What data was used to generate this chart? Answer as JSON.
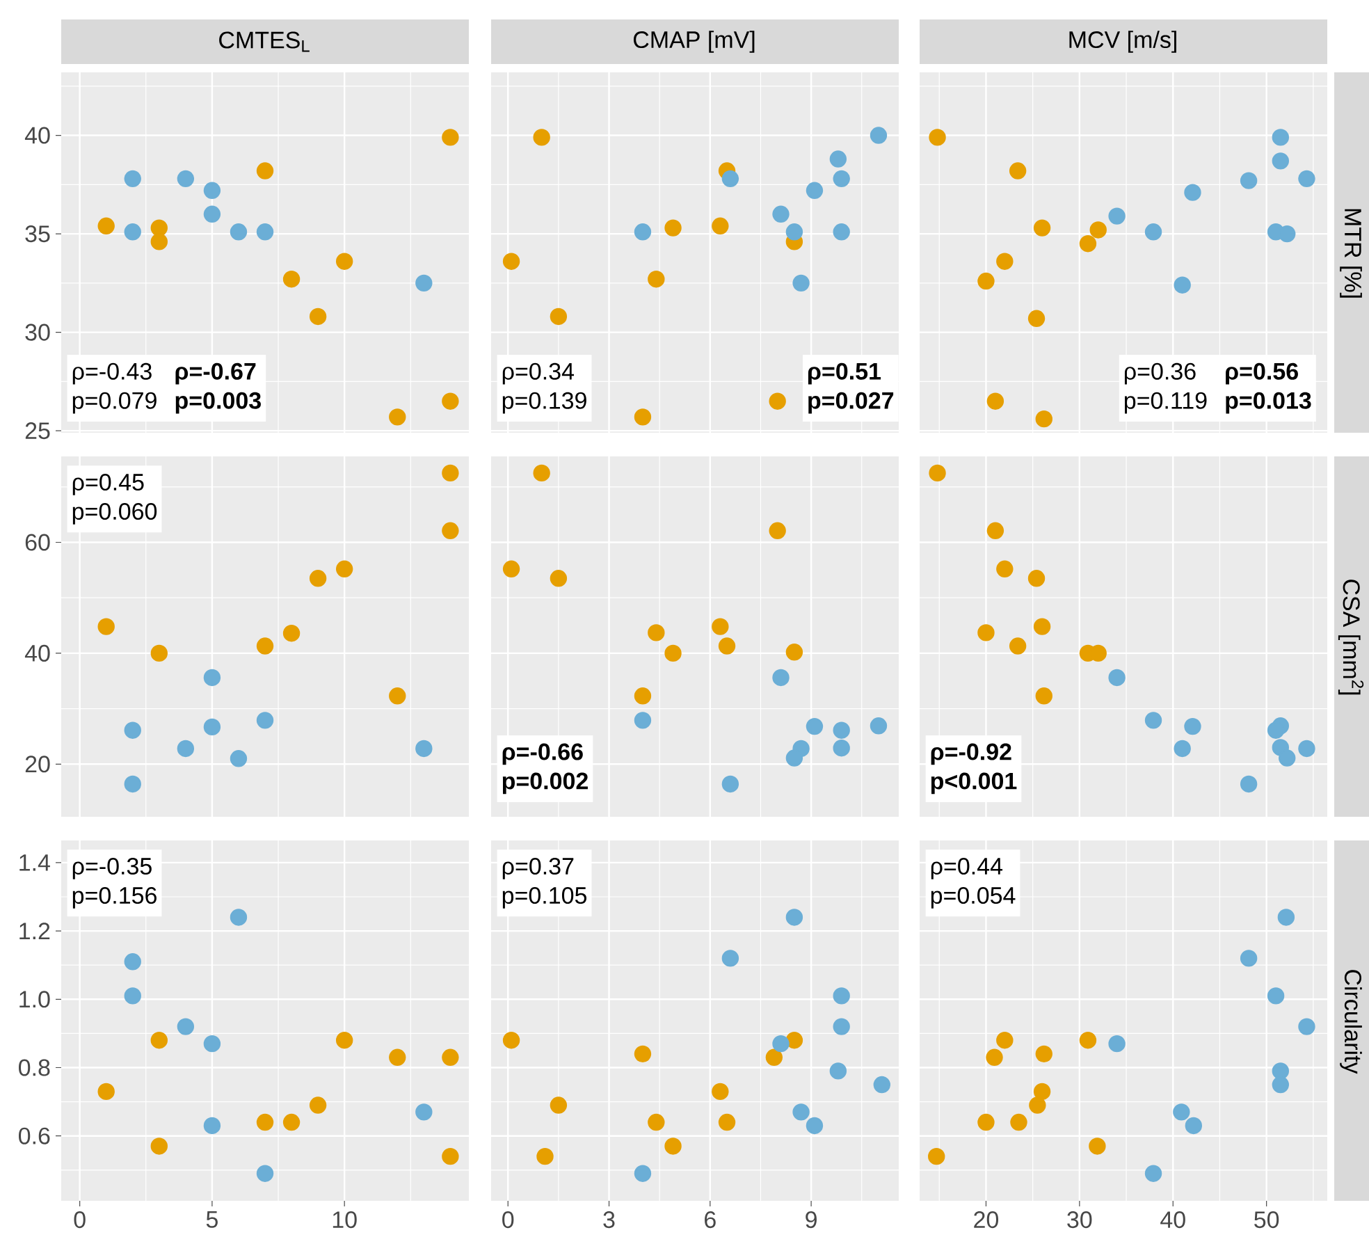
{
  "chart_data": [
    {
      "type": "scatter",
      "title": "CMTES$_{L}$",
      "xlim": [
        -0.7,
        14.7
      ],
      "ylim": [
        24.9,
        43.2
      ],
      "xticks": [
        0,
        5,
        10
      ],
      "yticks": [
        25,
        30,
        35,
        40
      ],
      "grid": true,
      "marker": "circle",
      "tick_labels": "y",
      "annotations": [
        "ρ=-0.43",
        "p=0.079",
        "**ρ=-0.67**",
        "**p=0.003**"
      ],
      "series": [
        {
          "color": "#e69f00",
          "x": [
            1,
            3,
            3,
            7,
            8,
            9,
            10,
            12,
            14,
            14
          ],
          "values": [
            35.4,
            35.3,
            34.6,
            38.2,
            32.7,
            30.8,
            33.6,
            25.7,
            26.5,
            39.9
          ]
        },
        {
          "color": "#6baed6",
          "x": [
            2,
            2,
            4,
            5,
            5,
            6,
            7,
            13
          ],
          "values": [
            37.8,
            35.1,
            37.8,
            37.2,
            36.0,
            35.1,
            35.1,
            32.5
          ]
        }
      ]
    },
    {
      "type": "scatter",
      "title": "CMAP [mV]",
      "xlim": [
        -0.5,
        11.6
      ],
      "ylim": [
        24.9,
        43.2
      ],
      "xticks": [
        0,
        3,
        6,
        9
      ],
      "yticks": [
        25,
        30,
        35,
        40
      ],
      "grid": true,
      "marker": "circle",
      "tick_labels": false,
      "annotations": [
        "ρ=0.34",
        "p=0.139",
        "**ρ=0.51**",
        "**p=0.027**"
      ],
      "series": [
        {
          "color": "#e69f00",
          "x": [
            1.0,
            0.1,
            1.5,
            4.0,
            4.4,
            4.9,
            6.3,
            6.5,
            8.5,
            8.0
          ],
          "values": [
            39.9,
            33.6,
            30.8,
            25.7,
            32.7,
            35.3,
            35.4,
            38.2,
            34.6,
            26.5
          ]
        },
        {
          "color": "#6baed6",
          "x": [
            4.0,
            6.6,
            8.1,
            8.5,
            8.7,
            9.1,
            9.8,
            9.9,
            9.9,
            11.0
          ],
          "values": [
            35.1,
            37.8,
            36.0,
            35.1,
            32.5,
            37.2,
            38.8,
            37.8,
            35.1,
            40.0
          ]
        }
      ]
    },
    {
      "type": "scatter",
      "title": "MCV [m/s]",
      "ylabel": "MTR [%]",
      "xlim": [
        12.9,
        56.5
      ],
      "ylim": [
        24.9,
        43.2
      ],
      "xticks": [
        20,
        30,
        40,
        50
      ],
      "yticks": [
        25,
        30,
        35,
        40
      ],
      "grid": true,
      "marker": "circle",
      "tick_labels": false,
      "annotations": [
        "ρ=0.36",
        "p=0.119",
        "**ρ=0.56**",
        "**p=0.013**"
      ],
      "series": [
        {
          "color": "#e69f00",
          "x": [
            14.8,
            23.4,
            26.0,
            32.0,
            30.9,
            22.0,
            20.0,
            25.4,
            21.0,
            26.2
          ],
          "values": [
            39.9,
            38.2,
            35.3,
            35.2,
            34.5,
            33.6,
            32.6,
            30.7,
            26.5,
            25.6
          ]
        },
        {
          "color": "#6baed6",
          "x": [
            34.0,
            37.9,
            42.1,
            48.1,
            51.5,
            51.5,
            54.3,
            51.0,
            52.2,
            41.0
          ],
          "values": [
            35.9,
            35.1,
            37.1,
            37.7,
            39.9,
            38.7,
            37.8,
            35.1,
            35.0,
            32.4
          ]
        }
      ]
    },
    {
      "type": "scatter",
      "xlim": [
        -0.7,
        14.7
      ],
      "ylim": [
        10.5,
        75.5
      ],
      "xticks": [
        0,
        5,
        10
      ],
      "yticks": [
        20,
        40,
        60
      ],
      "grid": true,
      "marker": "circle",
      "tick_labels": "y",
      "annotations": [
        "ρ=0.45",
        "p=0.060"
      ],
      "series": [
        {
          "color": "#e69f00",
          "x": [
            14,
            14,
            9,
            10,
            1,
            3,
            7,
            8,
            12
          ],
          "values": [
            72.5,
            62.1,
            53.5,
            55.2,
            44.8,
            40.0,
            41.3,
            43.6,
            32.3
          ]
        },
        {
          "color": "#6baed6",
          "x": [
            5,
            2,
            5,
            7,
            4,
            6,
            2,
            13
          ],
          "values": [
            35.6,
            26.1,
            26.7,
            27.9,
            22.8,
            21.0,
            16.4,
            22.8
          ]
        }
      ]
    },
    {
      "type": "scatter",
      "xlim": [
        -0.5,
        11.6
      ],
      "ylim": [
        10.5,
        75.5
      ],
      "xticks": [
        0,
        3,
        6,
        9
      ],
      "yticks": [
        20,
        40,
        60
      ],
      "grid": true,
      "marker": "circle",
      "tick_labels": false,
      "annotations": [
        "**ρ=-0.66**",
        "**p=0.002**"
      ],
      "series": [
        {
          "color": "#e69f00",
          "x": [
            1.0,
            0.1,
            1.5,
            8.0,
            6.3,
            4.4,
            6.5,
            4.9,
            8.5,
            4.0
          ],
          "values": [
            72.5,
            55.2,
            53.5,
            62.1,
            44.8,
            43.7,
            41.3,
            40.0,
            40.2,
            32.3
          ]
        },
        {
          "color": "#6baed6",
          "x": [
            8.1,
            4.0,
            9.1,
            9.9,
            11.0,
            8.7,
            9.9,
            8.5,
            6.6
          ],
          "values": [
            35.6,
            27.9,
            26.8,
            26.1,
            26.9,
            22.8,
            22.9,
            21.1,
            16.4
          ]
        }
      ]
    },
    {
      "type": "scatter",
      "ylabel": "CSA [mm$^{2}$]",
      "xlim": [
        12.9,
        56.5
      ],
      "ylim": [
        10.5,
        75.5
      ],
      "xticks": [
        20,
        30,
        40,
        50
      ],
      "yticks": [
        20,
        40,
        60
      ],
      "grid": true,
      "marker": "circle",
      "tick_labels": false,
      "annotations": [
        "**ρ=-0.92**",
        "**p<0.001**"
      ],
      "series": [
        {
          "color": "#e69f00",
          "x": [
            14.8,
            21.0,
            22.0,
            25.4,
            26.0,
            20.0,
            23.4,
            30.9,
            32.0,
            26.2
          ],
          "values": [
            72.5,
            62.1,
            55.2,
            53.5,
            44.8,
            43.7,
            41.3,
            40.0,
            40.0,
            32.3
          ]
        },
        {
          "color": "#6baed6",
          "x": [
            34.0,
            37.9,
            42.1,
            51.5,
            51.0,
            41.0,
            51.5,
            54.3,
            52.2,
            48.1
          ],
          "values": [
            35.6,
            27.9,
            26.8,
            26.9,
            26.1,
            22.8,
            23.0,
            22.8,
            21.1,
            16.4
          ]
        }
      ]
    },
    {
      "type": "scatter",
      "xlim": [
        -0.7,
        14.7
      ],
      "ylim": [
        0.41,
        1.465
      ],
      "xticks": [
        0,
        5,
        10
      ],
      "yticks": [
        0.6,
        0.8,
        {
          "value": 1,
          "label": "1.0"
        },
        1.2,
        1.4
      ],
      "grid": true,
      "marker": "circle",
      "annotations": [
        "ρ=-0.35",
        "p=0.156"
      ],
      "series": [
        {
          "color": "#e69f00",
          "x": [
            1,
            3,
            3,
            7,
            8,
            9,
            10,
            12,
            14,
            14
          ],
          "values": [
            0.73,
            0.88,
            0.57,
            0.64,
            0.64,
            0.69,
            0.88,
            0.83,
            0.83,
            0.54
          ]
        },
        {
          "color": "#6baed6",
          "x": [
            2,
            2,
            4,
            5,
            5,
            6,
            7,
            13
          ],
          "values": [
            1.11,
            1.01,
            0.92,
            0.87,
            0.63,
            1.24,
            0.49,
            0.67
          ]
        }
      ]
    },
    {
      "type": "scatter",
      "xlim": [
        -0.5,
        11.6
      ],
      "ylim": [
        0.41,
        1.465
      ],
      "xticks": [
        0,
        3,
        6,
        9
      ],
      "yticks": [
        0.6,
        0.8,
        1,
        1.2,
        1.4
      ],
      "grid": true,
      "marker": "circle",
      "tick_labels": "x",
      "annotations": [
        "ρ=0.37",
        "p=0.105"
      ],
      "series": [
        {
          "color": "#e69f00",
          "x": [
            0.1,
            4.0,
            1.5,
            1.1,
            4.4,
            4.9,
            6.3,
            6.5,
            8.5,
            7.9
          ],
          "values": [
            0.88,
            0.84,
            0.69,
            0.54,
            0.64,
            0.57,
            0.73,
            0.64,
            0.88,
            0.83
          ]
        },
        {
          "color": "#6baed6",
          "x": [
            8.5,
            6.6,
            9.9,
            9.9,
            8.1,
            9.8,
            11.1,
            8.7,
            9.1,
            4.0
          ],
          "values": [
            1.24,
            1.12,
            1.01,
            0.92,
            0.87,
            0.79,
            0.75,
            0.67,
            0.63,
            0.49
          ]
        }
      ]
    },
    {
      "type": "scatter",
      "ylabel": "Circularity",
      "xlim": [
        12.9,
        56.5
      ],
      "ylim": [
        0.41,
        1.465
      ],
      "xticks": [
        20,
        30,
        40,
        50
      ],
      "yticks": [
        0.6,
        0.8,
        1,
        1.2,
        1.4
      ],
      "grid": true,
      "marker": "circle",
      "tick_labels": "x",
      "annotations": [
        "ρ=0.44",
        "p=0.054"
      ],
      "series": [
        {
          "color": "#e69f00",
          "x": [
            14.7,
            20.0,
            23.5,
            25.5,
            26.0,
            26.2,
            22.0,
            20.9,
            30.9,
            31.9
          ],
          "values": [
            0.54,
            0.64,
            0.64,
            0.69,
            0.73,
            0.84,
            0.88,
            0.83,
            0.88,
            0.57
          ]
        },
        {
          "color": "#6baed6",
          "x": [
            52.1,
            48.1,
            51.0,
            54.3,
            34.0,
            51.5,
            51.5,
            40.9,
            42.2,
            37.9
          ],
          "values": [
            1.24,
            1.12,
            1.01,
            0.92,
            0.87,
            0.79,
            0.75,
            0.67,
            0.63,
            0.49
          ]
        }
      ]
    }
  ]
}
